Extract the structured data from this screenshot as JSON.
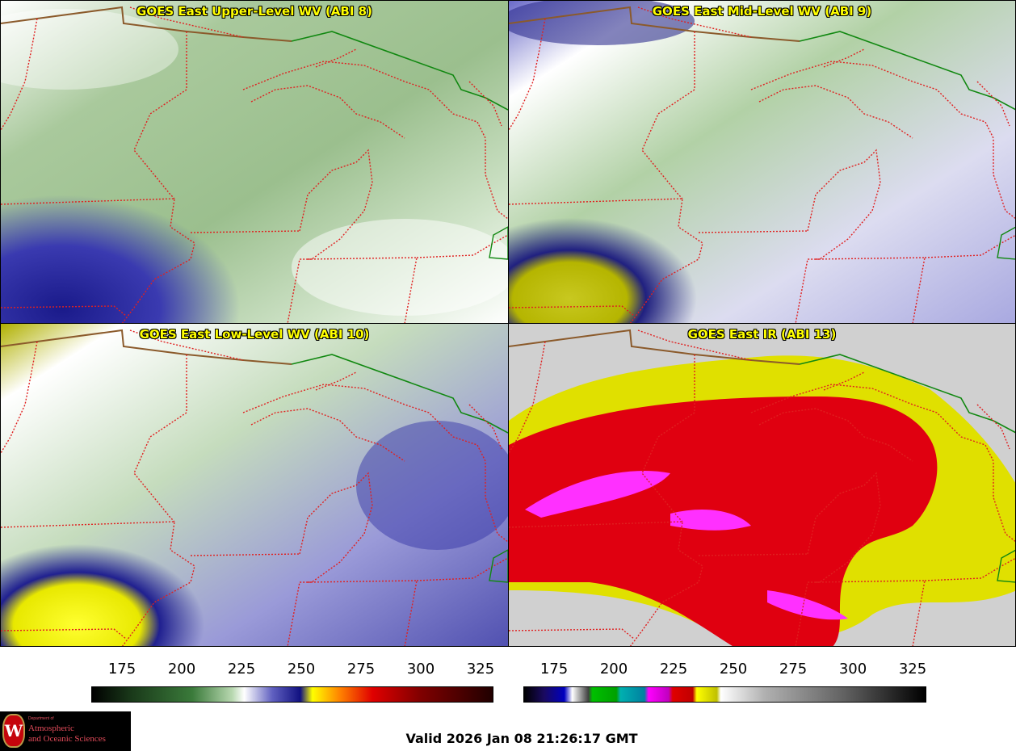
{
  "panels": [
    {
      "title": "GOES East Upper-Level WV (ABI 8)"
    },
    {
      "title": "GOES East Mid-Level WV (ABI 9)"
    },
    {
      "title": "GOES East Low-Level WV (ABI 10)"
    },
    {
      "title": "GOES East IR (ABI 13)"
    }
  ],
  "colorbars": [
    {
      "name": "wv",
      "ticks": [
        "175",
        "200",
        "225",
        "250",
        "275",
        "300",
        "325"
      ]
    },
    {
      "name": "ir",
      "ticks": [
        "175",
        "200",
        "225",
        "250",
        "275",
        "300",
        "325"
      ]
    }
  ],
  "logo": {
    "dept": "Department of",
    "line1": "Atmospheric",
    "line2": "and Oceanic Sciences",
    "seal": "W"
  },
  "valid_time": "Valid 2026 Jan 08 21:26:17 GMT",
  "colors": {
    "state_border": "#e02020",
    "intl_border": "#118811",
    "title_text": "#ffff00"
  }
}
